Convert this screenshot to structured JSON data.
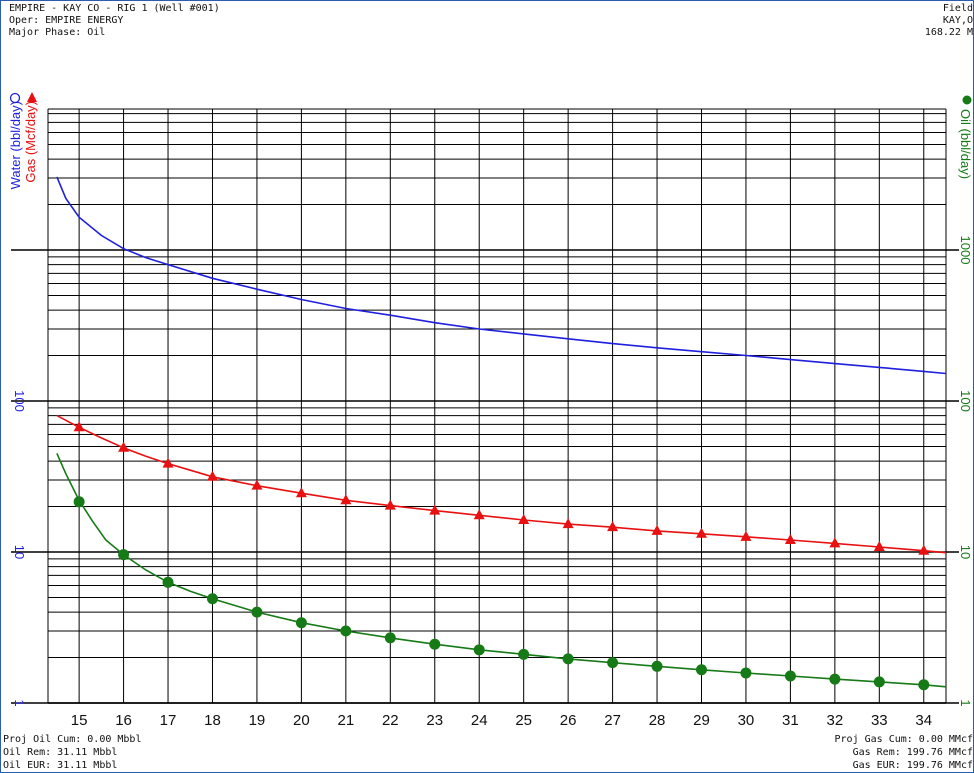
{
  "header": {
    "well_title": "EMPIRE - KAY CO - RIG 1 (Well #001)",
    "operator": "Oper: EMPIRE ENERGY",
    "major_phase": "Major Phase: Oil",
    "right_line1": "Field",
    "right_line2": "KAY,O",
    "right_line3": "168.22 M"
  },
  "footer": {
    "proj_oil_cum": "Proj Oil Cum: 0.00 Mbbl",
    "oil_rem": "Oil Rem: 31.11 Mbbl",
    "oil_eur": "Oil EUR: 31.11 Mbbl",
    "proj_gas_cum": "Proj Gas Cum: 0.00 MMcf",
    "gas_rem": "Gas Rem: 199.76 MMcf",
    "gas_eur": "Gas EUR: 199.76 MMcf"
  },
  "colors": {
    "water": "#1f1fe0",
    "gas": "#e81010",
    "oil": "#167a16",
    "grid": "#000000"
  },
  "chart_data": {
    "type": "line",
    "scale": "log",
    "ylim": [
      1,
      5000
    ],
    "xlim": [
      14.3,
      34.5
    ],
    "x_ticks": [
      15,
      16,
      17,
      18,
      19,
      20,
      21,
      22,
      23,
      24,
      25,
      26,
      27,
      28,
      29,
      30,
      31,
      32,
      33,
      34
    ],
    "left_axis": {
      "labels": [
        "Water (bbl/day)",
        "Gas (Mcf/day)"
      ],
      "ticks": [
        "1",
        "10",
        "100"
      ]
    },
    "right_axis": {
      "label": "Oil (bbl/day)",
      "ticks": [
        "1",
        "10",
        "100",
        "1000"
      ]
    },
    "series": [
      {
        "name": "Water (bbl/day)",
        "color": "#1f1fe0",
        "marker": "none",
        "x": [
          14.5,
          14.7,
          15,
          15.5,
          16,
          16.5,
          17,
          18,
          19,
          20,
          21,
          22,
          23,
          24,
          25,
          26,
          27,
          28,
          29,
          30,
          31,
          32,
          33,
          34,
          34.5
        ],
        "y": [
          3050,
          2200,
          1650,
          1250,
          1020,
          890,
          800,
          650,
          550,
          470,
          410,
          370,
          330,
          300,
          278,
          258,
          240,
          225,
          212,
          200,
          188,
          177,
          167,
          157,
          152
        ]
      },
      {
        "name": "Gas (Mcf/day)",
        "color": "#e81010",
        "marker": "triangle",
        "x": [
          15,
          16,
          17,
          18,
          19,
          20,
          21,
          22,
          23,
          24,
          25,
          26,
          27,
          28,
          29,
          30,
          31,
          32,
          33,
          34
        ],
        "y": [
          67,
          49,
          38.5,
          31.5,
          27.5,
          24.5,
          22,
          20.3,
          18.8,
          17.5,
          16.3,
          15.3,
          14.6,
          13.8,
          13.2,
          12.6,
          12,
          11.4,
          10.8,
          10.2
        ],
        "curve_x": [
          14.5,
          15,
          15.5,
          16,
          16.5,
          17,
          17.5,
          18,
          19,
          20,
          21,
          22,
          23,
          24,
          25,
          26,
          27,
          28,
          29,
          30,
          31,
          32,
          33,
          34,
          34.5
        ],
        "curve_y": [
          80,
          67,
          57,
          49,
          43,
          38.5,
          34.8,
          31.5,
          27.5,
          24.5,
          22,
          20.3,
          18.8,
          17.5,
          16.3,
          15.3,
          14.6,
          13.8,
          13.2,
          12.6,
          12,
          11.4,
          10.8,
          10.2,
          9.9
        ]
      },
      {
        "name": "Oil (bbl/day)",
        "color": "#167a16",
        "marker": "circle",
        "x": [
          15,
          16,
          17,
          18,
          19,
          20,
          21,
          22,
          23,
          24,
          25,
          26,
          27,
          28,
          29,
          30,
          31,
          32,
          33,
          34
        ],
        "y": [
          21.5,
          9.6,
          6.3,
          4.9,
          4.0,
          3.4,
          3.0,
          2.7,
          2.45,
          2.25,
          2.1,
          1.96,
          1.85,
          1.75,
          1.66,
          1.58,
          1.51,
          1.44,
          1.38,
          1.32
        ],
        "curve_x": [
          14.5,
          14.7,
          15,
          15.3,
          15.6,
          16,
          16.5,
          17,
          17.5,
          18,
          19,
          20,
          21,
          22,
          23,
          24,
          25,
          26,
          27,
          28,
          29,
          30,
          31,
          32,
          33,
          34,
          34.5
        ],
        "curve_y": [
          45,
          33,
          22,
          16,
          12,
          9.6,
          7.6,
          6.3,
          5.5,
          4.9,
          4.0,
          3.4,
          3.0,
          2.7,
          2.45,
          2.25,
          2.1,
          1.96,
          1.85,
          1.75,
          1.66,
          1.58,
          1.51,
          1.44,
          1.38,
          1.32,
          1.28
        ]
      }
    ]
  }
}
